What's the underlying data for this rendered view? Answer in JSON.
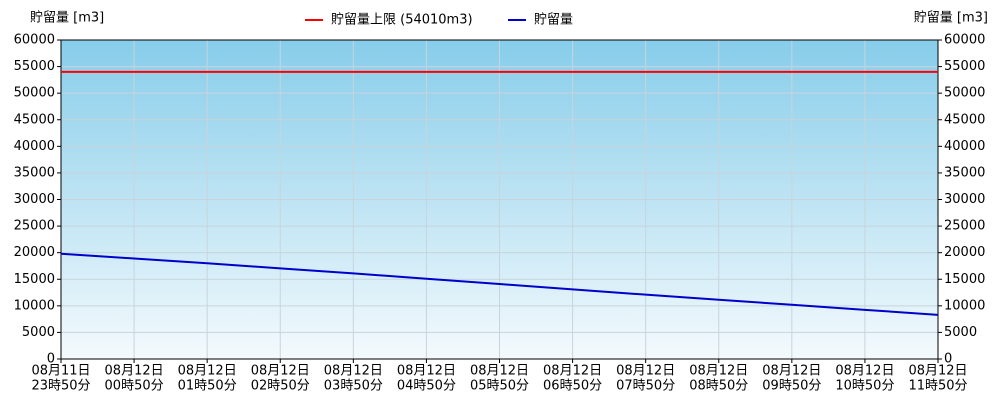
{
  "chart_data": {
    "type": "line",
    "ylabel": "貯留量 [m3]",
    "y2label": "貯留量 [m3]",
    "categories": [
      [
        "08月11日",
        "23時50分"
      ],
      [
        "08月12日",
        "00時50分"
      ],
      [
        "08月12日",
        "01時50分"
      ],
      [
        "08月12日",
        "02時50分"
      ],
      [
        "08月12日",
        "03時50分"
      ],
      [
        "08月12日",
        "04時50分"
      ],
      [
        "08月12日",
        "05時50分"
      ],
      [
        "08月12日",
        "06時50分"
      ],
      [
        "08月12日",
        "07時50分"
      ],
      [
        "08月12日",
        "08時50分"
      ],
      [
        "08月12日",
        "09時50分"
      ],
      [
        "08月12日",
        "10時50分"
      ],
      [
        "08月12日",
        "11時50分"
      ]
    ],
    "series": [
      {
        "name": "貯留量上限 (54010m3)",
        "color": "#ff0000",
        "values": [
          54010,
          54010,
          54010,
          54010,
          54010,
          54010,
          54010,
          54010,
          54010,
          54010,
          54010,
          54010,
          54010
        ]
      },
      {
        "name": "貯留量",
        "color": "#0000cc",
        "values": [
          19800,
          18900,
          18000,
          17050,
          16100,
          15100,
          14100,
          13100,
          12100,
          11150,
          10200,
          9250,
          8300
        ]
      }
    ],
    "ylim": [
      0,
      60000
    ],
    "yticks": [
      0,
      5000,
      10000,
      15000,
      20000,
      25000,
      30000,
      35000,
      40000,
      45000,
      50000,
      55000,
      60000
    ],
    "y2lim": [
      0,
      60000
    ],
    "y2ticks": [
      0,
      5000,
      10000,
      15000,
      20000,
      25000,
      30000,
      35000,
      40000,
      45000,
      50000,
      55000,
      60000
    ],
    "grid": true,
    "legend": "top"
  }
}
